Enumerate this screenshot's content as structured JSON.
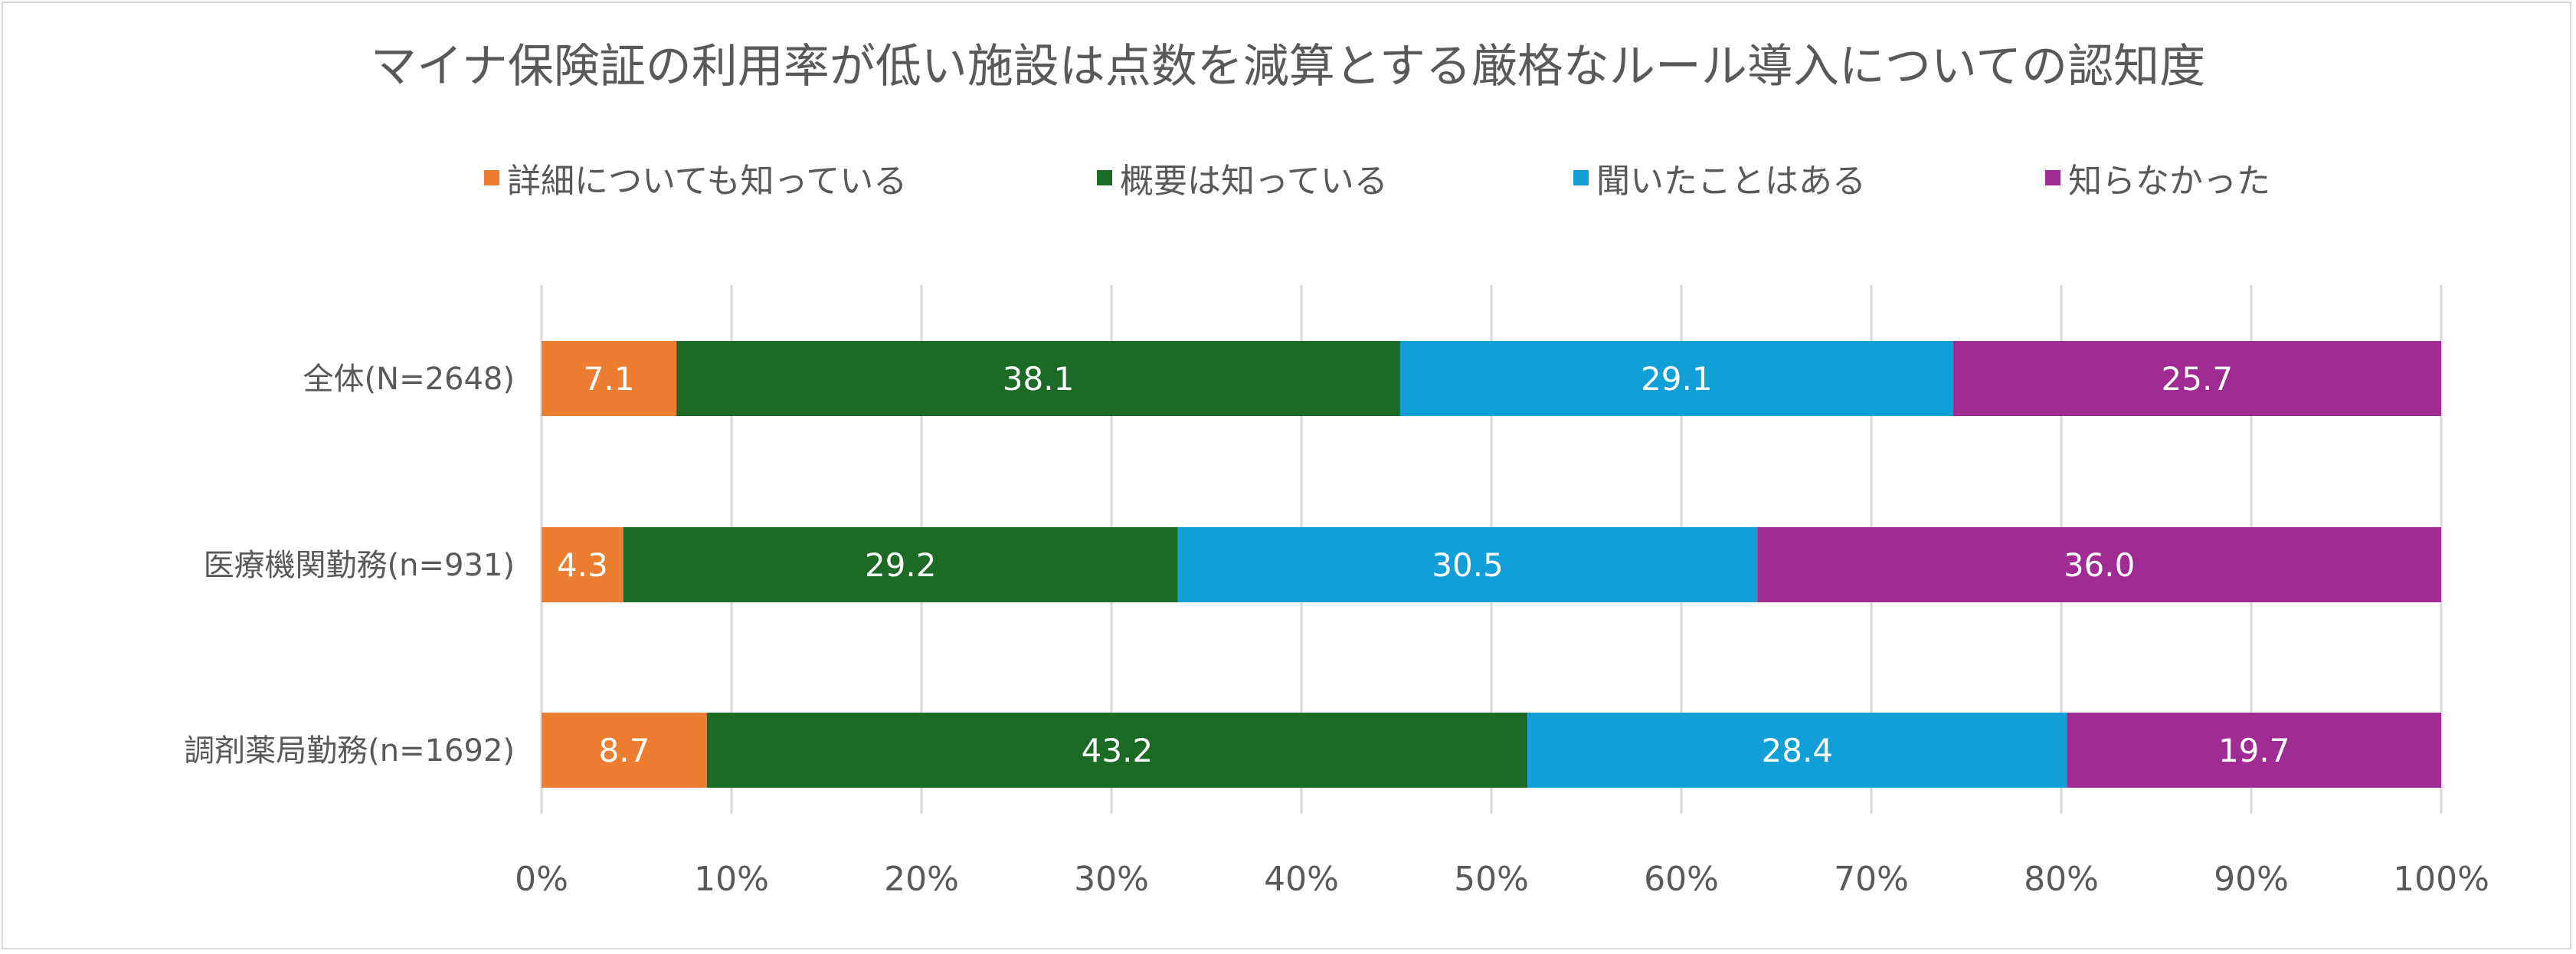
{
  "chart_data": {
    "type": "bar",
    "orientation": "horizontal",
    "stacked": "percent",
    "title": "マイナ保険証の利用率が低い施設は点数を減算とする厳格なルール導入についての認知度",
    "categories": [
      "全体(N=2648)",
      "医療機関勤務(n=931)",
      "調剤薬局勤務(n=1692)"
    ],
    "series": [
      {
        "name": "詳細についても知っている",
        "color": "#ed7d31",
        "values": [
          7.1,
          4.3,
          8.7
        ]
      },
      {
        "name": "概要は知っている",
        "color": "#1b6b26",
        "values": [
          38.1,
          29.2,
          43.2
        ]
      },
      {
        "name": "聞いたことはある",
        "color": "#119fd8",
        "values": [
          29.1,
          30.5,
          28.4
        ]
      },
      {
        "name": "知らなかった",
        "color": "#a02b93",
        "values": [
          25.7,
          36.0,
          19.7
        ]
      }
    ],
    "data_labels": [
      [
        "7.1",
        "4.3",
        "8.7"
      ],
      [
        "38.1",
        "29.2",
        "43.2"
      ],
      [
        "29.1",
        "30.5",
        "28.4"
      ],
      [
        "25.7",
        "36.0",
        "19.7"
      ]
    ],
    "xlim": [
      0,
      100
    ],
    "x_tick_labels": [
      "0%",
      "10%",
      "20%",
      "30%",
      "40%",
      "50%",
      "60%",
      "70%",
      "80%",
      "90%",
      "100%"
    ],
    "grid": true,
    "legend_position": "top"
  }
}
